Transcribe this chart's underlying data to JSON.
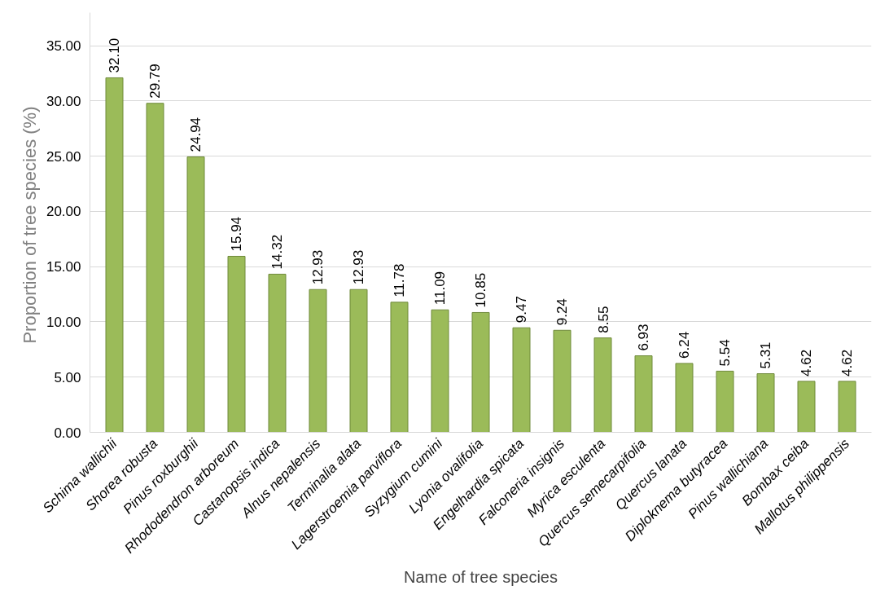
{
  "chart_data": {
    "type": "bar",
    "xlabel": "Name of tree species",
    "ylabel": "Proportion of tree species  (%)",
    "categories": [
      "Schima wallichii",
      "Shorea robusta",
      "Pinus roxburghii",
      "Rhododendron arboreum",
      "Castanopsis indica",
      "Alnus nepalensis",
      "Terminalia alata",
      "Lagerstroemia parviflora",
      "Syzygium cumini",
      "Lyonia ovalifolia",
      "Engelhardia spicata",
      "Falconeria insignis",
      "Myrica esculenta",
      "Quercus semecarpifolia",
      "Quercus lanata",
      "Diploknema butyracea",
      "Pinus wallichiana",
      "Bombax ceiba",
      "Mallotus philippensis"
    ],
    "values": [
      32.1,
      29.79,
      24.94,
      15.94,
      14.32,
      12.93,
      12.93,
      11.78,
      11.09,
      10.85,
      9.47,
      9.24,
      8.55,
      6.93,
      6.24,
      5.54,
      5.31,
      4.62,
      4.62
    ],
    "value_labels": [
      "32.10",
      "29.79",
      "24.94",
      "15.94",
      "14.32",
      "12.93",
      "12.93",
      "11.78",
      "11.09",
      "10.85",
      "9.47",
      "9.24",
      "8.55",
      "6.93",
      "6.24",
      "5.54",
      "5.31",
      "4.62",
      "4.62"
    ],
    "color": "#9bbb59",
    "ylim": [
      0,
      38
    ],
    "yticks": [
      {
        "value": 0,
        "label": "0.00"
      },
      {
        "value": 5,
        "label": "5.00"
      },
      {
        "value": 10,
        "label": "10.00"
      },
      {
        "value": 15,
        "label": "15.00"
      },
      {
        "value": 20,
        "label": "20.00"
      },
      {
        "value": 25,
        "label": "25.00"
      },
      {
        "value": 30,
        "label": "30.00"
      },
      {
        "value": 35,
        "label": "35.00"
      }
    ],
    "grid": "y"
  }
}
